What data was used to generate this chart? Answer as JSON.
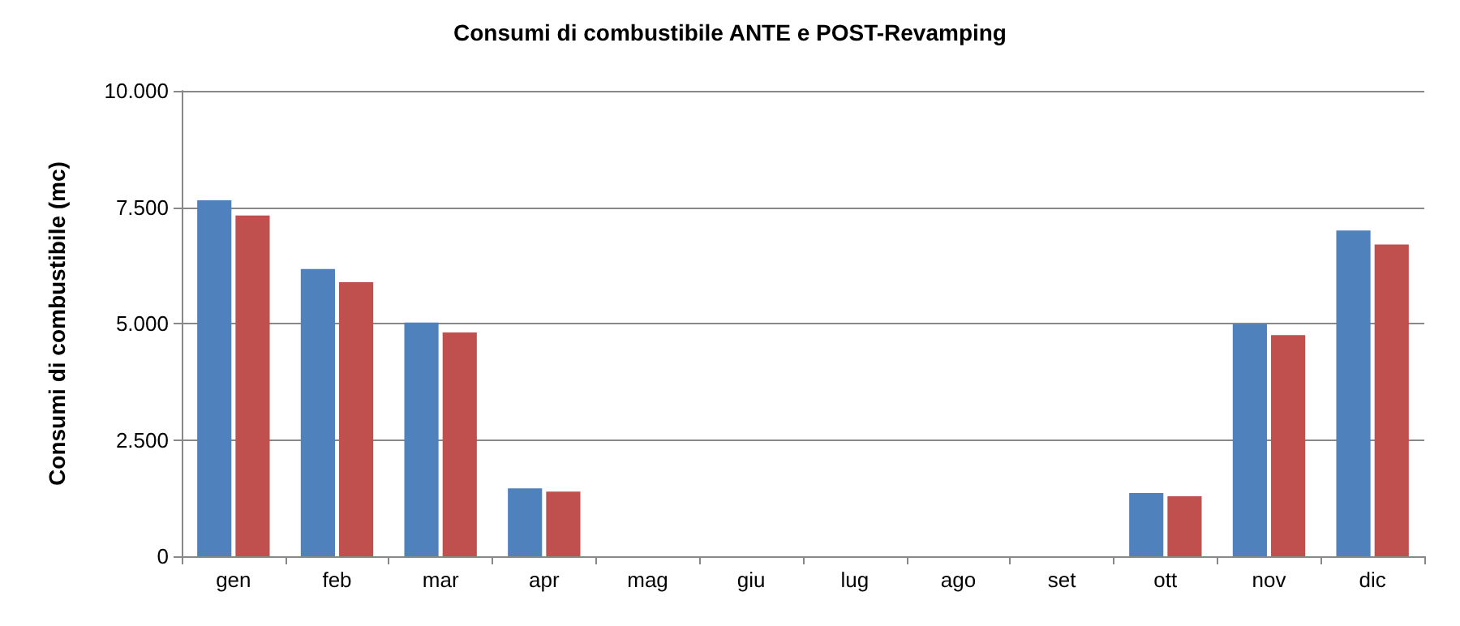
{
  "chart_data": {
    "type": "bar",
    "title": "Consumi di combustibile ANTE e POST-Revamping",
    "ylabel": "Consumi di combustibile (mc)",
    "categories": [
      "gen",
      "feb",
      "mar",
      "apr",
      "mag",
      "giu",
      "lug",
      "ago",
      "set",
      "ott",
      "nov",
      "dic"
    ],
    "series": [
      {
        "color": "#4f81bd",
        "values": [
          7650,
          6170,
          5020,
          1460,
          0,
          0,
          0,
          0,
          0,
          1360,
          4990,
          7000
        ]
      },
      {
        "color": "#c0504d",
        "values": [
          7320,
          5890,
          4810,
          1390,
          0,
          0,
          0,
          0,
          0,
          1290,
          4750,
          6700
        ]
      }
    ],
    "ylim": [
      0,
      10000
    ],
    "yticks": [
      {
        "value": 0,
        "label": "0"
      },
      {
        "value": 2500,
        "label": "2.500"
      },
      {
        "value": 5000,
        "label": "5.000"
      },
      {
        "value": 7500,
        "label": "7.500"
      },
      {
        "value": 10000,
        "label": "10.000"
      }
    ],
    "grid": "y"
  }
}
